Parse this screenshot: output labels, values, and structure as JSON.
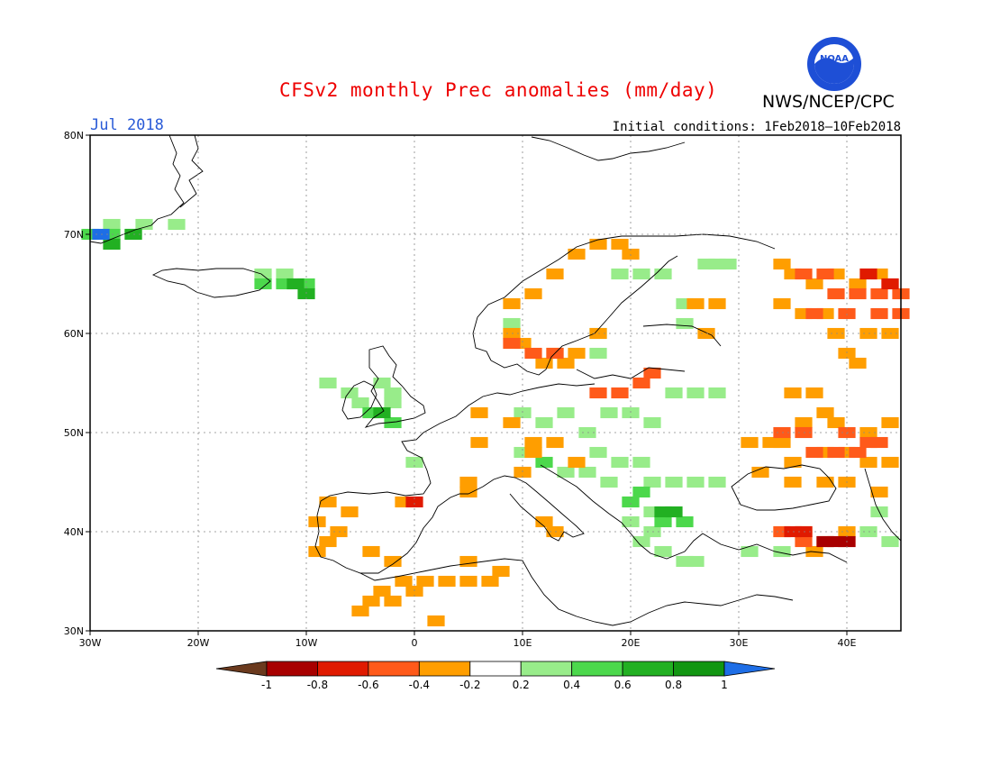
{
  "header": {
    "title": "CFSv2 monthly Prec anomalies (mm/day)",
    "agency": "NWS/NCEP/CPC",
    "logo_text": "NOAA",
    "month": "Jul 2018",
    "initial_conditions": "Initial conditions: 1Feb2018–10Feb2018"
  },
  "axes": {
    "lon_labels": [
      "30W",
      "20W",
      "10W",
      "0",
      "10E",
      "20E",
      "30E",
      "40E"
    ],
    "lat_labels": [
      "80N",
      "70N",
      "60N",
      "50N",
      "40N",
      "30N"
    ],
    "lon_range": [
      -30,
      45
    ],
    "lat_range": [
      30,
      80
    ],
    "grid": true
  },
  "colorbar": {
    "ticks": [
      "-1",
      "-0.8",
      "-0.6",
      "-0.4",
      "-0.2",
      "0.2",
      "0.4",
      "0.6",
      "0.8",
      "1"
    ],
    "colors": [
      "#6b3a1e",
      "#a80000",
      "#e01a00",
      "#ff5a1a",
      "#ff9e00",
      "#ffffff",
      "#98ec8a",
      "#4cd84c",
      "#22b022",
      "#129612",
      "#1e6ee6"
    ]
  },
  "anomaly_regions": [
    {
      "level": "pos1",
      "cells": [
        [
          -28,
          71
        ],
        [
          -25,
          71
        ],
        [
          -22,
          71
        ],
        [
          -14,
          66
        ],
        [
          -12,
          66
        ],
        [
          -8,
          55
        ],
        [
          -6,
          54
        ],
        [
          -5,
          53
        ],
        [
          -4,
          52
        ],
        [
          -3,
          55
        ],
        [
          -2,
          54
        ],
        [
          -2,
          53
        ],
        [
          0,
          47
        ],
        [
          10,
          48
        ],
        [
          10,
          52
        ],
        [
          12,
          51
        ],
        [
          14,
          52
        ],
        [
          16,
          50
        ],
        [
          18,
          52
        ],
        [
          20,
          52
        ],
        [
          22,
          51
        ],
        [
          24,
          54
        ],
        [
          26,
          54
        ],
        [
          28,
          54
        ],
        [
          17,
          48
        ],
        [
          19,
          47
        ],
        [
          21,
          47
        ],
        [
          14,
          46
        ],
        [
          16,
          46
        ],
        [
          18,
          45
        ],
        [
          22,
          45
        ],
        [
          24,
          45
        ],
        [
          26,
          45
        ],
        [
          28,
          45
        ],
        [
          20,
          43
        ],
        [
          22,
          42
        ],
        [
          22,
          40
        ],
        [
          20,
          41
        ],
        [
          21,
          39
        ],
        [
          23,
          38
        ],
        [
          25,
          37
        ],
        [
          26,
          37
        ],
        [
          31,
          38
        ],
        [
          34,
          38
        ],
        [
          19,
          66
        ],
        [
          21,
          66
        ],
        [
          23,
          66
        ],
        [
          27,
          67
        ],
        [
          28,
          67
        ],
        [
          29,
          67
        ],
        [
          25,
          61
        ],
        [
          25,
          63
        ],
        [
          17,
          60
        ],
        [
          17,
          58
        ],
        [
          9,
          61
        ],
        [
          44,
          39
        ],
        [
          42,
          40
        ],
        [
          43,
          42
        ]
      ]
    },
    {
      "level": "pos2",
      "cells": [
        [
          -30,
          70
        ],
        [
          -28,
          70
        ],
        [
          -26,
          70
        ],
        [
          -14,
          65
        ],
        [
          -12,
          65
        ],
        [
          -10,
          65
        ],
        [
          -4,
          52
        ],
        [
          -2,
          51
        ],
        [
          12,
          47
        ],
        [
          20,
          43
        ],
        [
          23,
          41
        ],
        [
          25,
          41
        ],
        [
          21,
          44
        ]
      ]
    },
    {
      "level": "pos3",
      "cells": [
        [
          -28,
          69
        ],
        [
          -26,
          70
        ],
        [
          -11,
          65
        ],
        [
          -10,
          64
        ],
        [
          -3,
          52
        ],
        [
          23,
          42
        ],
        [
          24,
          42
        ]
      ]
    },
    {
      "level": "pos4",
      "cells": [
        [
          -29,
          70
        ]
      ]
    },
    {
      "level": "neg1",
      "cells": [
        [
          -8,
          43
        ],
        [
          -6,
          42
        ],
        [
          -9,
          41
        ],
        [
          -7,
          40
        ],
        [
          -8,
          39
        ],
        [
          -9,
          38
        ],
        [
          -4,
          38
        ],
        [
          -2,
          37
        ],
        [
          -3,
          34
        ],
        [
          -1,
          35
        ],
        [
          1,
          35
        ],
        [
          3,
          35
        ],
        [
          5,
          35
        ],
        [
          7,
          35
        ],
        [
          8,
          36
        ],
        [
          -5,
          32
        ],
        [
          -4,
          33
        ],
        [
          -2,
          33
        ],
        [
          2,
          31
        ],
        [
          0,
          34
        ],
        [
          6,
          52
        ],
        [
          9,
          51
        ],
        [
          11,
          49
        ],
        [
          13,
          49
        ],
        [
          11,
          48
        ],
        [
          15,
          47
        ],
        [
          10,
          46
        ],
        [
          -1,
          43
        ],
        [
          5,
          37
        ],
        [
          5,
          44
        ],
        [
          5,
          45
        ],
        [
          6,
          49
        ],
        [
          12,
          41
        ],
        [
          13,
          40
        ],
        [
          9,
          63
        ],
        [
          11,
          64
        ],
        [
          13,
          66
        ],
        [
          15,
          68
        ],
        [
          17,
          69
        ],
        [
          19,
          69
        ],
        [
          20,
          68
        ],
        [
          9,
          60
        ],
        [
          10,
          59
        ],
        [
          12,
          57
        ],
        [
          14,
          57
        ],
        [
          13,
          58
        ],
        [
          15,
          58
        ],
        [
          17,
          60
        ],
        [
          26,
          63
        ],
        [
          27,
          60
        ],
        [
          28,
          63
        ],
        [
          34,
          67
        ],
        [
          35,
          66
        ],
        [
          37,
          65
        ],
        [
          39,
          66
        ],
        [
          41,
          65
        ],
        [
          42,
          66
        ],
        [
          43,
          66
        ],
        [
          34,
          63
        ],
        [
          36,
          62
        ],
        [
          38,
          62
        ],
        [
          39,
          60
        ],
        [
          40,
          58
        ],
        [
          42,
          60
        ],
        [
          44,
          60
        ],
        [
          41,
          57
        ],
        [
          35,
          54
        ],
        [
          37,
          54
        ],
        [
          38,
          52
        ],
        [
          39,
          51
        ],
        [
          36,
          51
        ],
        [
          33,
          49
        ],
        [
          31,
          49
        ],
        [
          34,
          49
        ],
        [
          35,
          47
        ],
        [
          38,
          48
        ],
        [
          40,
          48
        ],
        [
          42,
          47
        ],
        [
          44,
          47
        ],
        [
          42,
          50
        ],
        [
          44,
          51
        ],
        [
          43,
          44
        ],
        [
          40,
          45
        ],
        [
          38,
          45
        ],
        [
          35,
          45
        ],
        [
          32,
          46
        ],
        [
          34,
          40
        ],
        [
          36,
          40
        ],
        [
          40,
          40
        ],
        [
          38,
          39
        ],
        [
          37,
          38
        ]
      ]
    },
    {
      "level": "neg2",
      "cells": [
        [
          36,
          66
        ],
        [
          38,
          66
        ],
        [
          39,
          64
        ],
        [
          41,
          64
        ],
        [
          43,
          64
        ],
        [
          45,
          64
        ],
        [
          37,
          62
        ],
        [
          40,
          62
        ],
        [
          43,
          62
        ],
        [
          44,
          65
        ],
        [
          45,
          62
        ],
        [
          34,
          50
        ],
        [
          36,
          50
        ],
        [
          40,
          50
        ],
        [
          42,
          49
        ],
        [
          41,
          48
        ],
        [
          39,
          48
        ],
        [
          37,
          48
        ],
        [
          43,
          49
        ],
        [
          34,
          40
        ],
        [
          36,
          40
        ],
        [
          38,
          39
        ],
        [
          40,
          39
        ],
        [
          36,
          39
        ],
        [
          17,
          54
        ],
        [
          19,
          54
        ],
        [
          21,
          55
        ],
        [
          22,
          56
        ],
        [
          9,
          59
        ],
        [
          11,
          58
        ],
        [
          13,
          58
        ]
      ]
    },
    {
      "level": "neg3",
      "cells": [
        [
          42,
          66
        ],
        [
          44,
          65
        ],
        [
          36,
          40
        ],
        [
          35,
          40
        ],
        [
          0,
          43
        ]
      ]
    },
    {
      "level": "neg4",
      "cells": [
        [
          38,
          39
        ],
        [
          39,
          39
        ],
        [
          40,
          39
        ]
      ]
    }
  ]
}
